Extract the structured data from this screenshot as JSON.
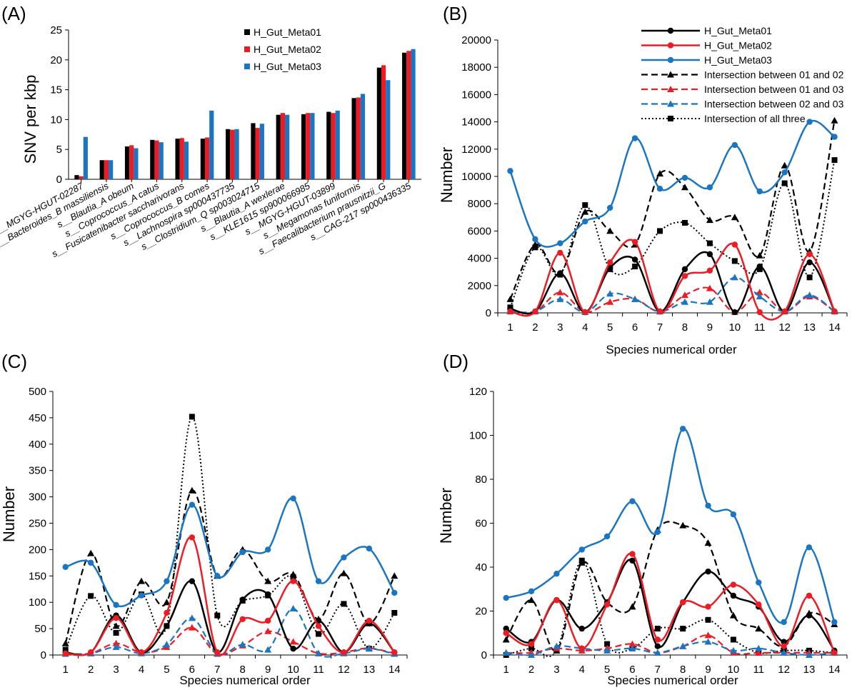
{
  "colors": {
    "meta01": "#000000",
    "meta02": "#ed1c24",
    "meta03": "#1a75c2"
  },
  "chart_data": [
    {
      "panel": "(A)",
      "type": "bar",
      "ylabel": "SNV per kbp",
      "ylim": [
        0,
        25
      ],
      "yticks": [
        0,
        5,
        10,
        15,
        20,
        25
      ],
      "categories": [
        "s__MGYG-HGUT-02287",
        "s__Bacteroides_B massiliensis",
        "s__Blautia_A obeum",
        "s__Coprococcus_A catus",
        "s__Fusicatenibacter saccharivorans",
        "s__Coprococcus_B comes",
        "s__Lachnospira sp000437735",
        "s__Clostridium_Q sp003024715",
        "s__Blautia_A wexlerae",
        "s__KLE1615 sp900066985",
        "s__MGYG-HGUT-03899",
        "s__Megamonas funiformis",
        "s__Faecalibacterium prausnitzii_G",
        "s__CAG-217 sp000436335"
      ],
      "series": [
        {
          "name": "H_Gut_Meta01",
          "values": [
            0.7,
            3.2,
            5.5,
            6.6,
            6.8,
            6.8,
            8.4,
            9.4,
            10.8,
            10.9,
            11.3,
            13.6,
            18.7,
            21.2
          ]
        },
        {
          "name": "H_Gut_Meta02",
          "values": [
            0.5,
            3.2,
            5.7,
            6.5,
            6.9,
            7.0,
            8.3,
            8.6,
            11.1,
            11.1,
            11.1,
            13.7,
            19.1,
            21.5
          ]
        },
        {
          "name": "H_Gut_Meta03",
          "values": [
            7.1,
            3.2,
            5.2,
            6.2,
            6.3,
            11.5,
            8.4,
            9.3,
            10.8,
            11.1,
            11.5,
            14.3,
            16.6,
            21.8
          ]
        }
      ],
      "legend_position": "top-center"
    },
    {
      "panel": "(B)",
      "type": "line",
      "xlabel": "Species numerical order",
      "ylabel": "Number",
      "ylim": [
        0,
        20000
      ],
      "yticks": [
        0,
        2000,
        4000,
        6000,
        8000,
        10000,
        12000,
        14000,
        16000,
        18000,
        20000
      ],
      "x": [
        1,
        2,
        3,
        4,
        5,
        6,
        7,
        8,
        9,
        10,
        11,
        12,
        13,
        14
      ],
      "legend_position": "top-right",
      "series": [
        {
          "name": "H_Gut_Meta01",
          "values": [
            300,
            100,
            2900,
            50,
            3300,
            3900,
            100,
            3200,
            4300,
            50,
            3400,
            100,
            3700,
            100
          ]
        },
        {
          "name": "H_Gut_Meta02",
          "values": [
            100,
            100,
            4400,
            50,
            3700,
            5200,
            100,
            2700,
            3100,
            5000,
            50,
            100,
            4300,
            100
          ]
        },
        {
          "name": "H_Gut_Meta03",
          "values": [
            10400,
            5400,
            5100,
            6700,
            7700,
            12800,
            9100,
            9900,
            9200,
            12300,
            8900,
            10300,
            14000,
            12900
          ]
        },
        {
          "name": "Intersection between 01 and 02",
          "values": [
            1000,
            5000,
            2900,
            7400,
            6000,
            5000,
            10200,
            9200,
            6800,
            7000,
            4200,
            10800,
            4500,
            14100
          ]
        },
        {
          "name": "Intersection between 01 and 03",
          "values": [
            100,
            100,
            1500,
            50,
            800,
            1000,
            100,
            1300,
            1800,
            50,
            1500,
            100,
            1200,
            100
          ]
        },
        {
          "name": "Intersection between 02 and 03",
          "values": [
            100,
            100,
            1000,
            50,
            1400,
            1000,
            100,
            800,
            800,
            2600,
            1200,
            100,
            1300,
            100
          ]
        },
        {
          "name": "Intersection of all three",
          "values": [
            400,
            4800,
            2800,
            7900,
            3200,
            3400,
            6000,
            6600,
            5100,
            3800,
            3200,
            9500,
            2600,
            11200
          ]
        }
      ]
    },
    {
      "panel": "(C)",
      "type": "line",
      "xlabel": "Species numerical order",
      "ylabel": "Number",
      "ylim": [
        0,
        500
      ],
      "yticks": [
        0,
        50,
        100,
        150,
        200,
        250,
        300,
        350,
        400,
        450,
        500
      ],
      "x": [
        1,
        2,
        3,
        4,
        5,
        6,
        7,
        8,
        9,
        10,
        11,
        12,
        13,
        14
      ],
      "series": [
        {
          "name": "H_Gut_Meta01",
          "values": [
            5,
            5,
            75,
            5,
            55,
            140,
            5,
            105,
            115,
            12,
            65,
            5,
            60,
            5
          ]
        },
        {
          "name": "H_Gut_Meta02",
          "values": [
            3,
            5,
            70,
            5,
            80,
            223,
            5,
            68,
            65,
            140,
            55,
            5,
            65,
            5
          ]
        },
        {
          "name": "H_Gut_Meta03",
          "values": [
            167,
            175,
            95,
            113,
            140,
            285,
            150,
            195,
            200,
            297,
            140,
            185,
            202,
            118
          ]
        },
        {
          "name": "Intersection between 01 and 02",
          "values": [
            22,
            193,
            55,
            140,
            100,
            312,
            150,
            200,
            140,
            153,
            68,
            155,
            60,
            150
          ]
        },
        {
          "name": "Intersection between 01 and 03",
          "values": [
            2,
            3,
            22,
            5,
            15,
            52,
            2,
            18,
            45,
            25,
            3,
            5,
            13,
            3
          ]
        },
        {
          "name": "Intersection between 02 and 03",
          "values": [
            2,
            3,
            15,
            3,
            20,
            70,
            3,
            20,
            10,
            88,
            3,
            3,
            12,
            2
          ]
        },
        {
          "name": "Intersection of all three",
          "values": [
            10,
            112,
            42,
            115,
            55,
            452,
            75,
            103,
            113,
            148,
            40,
            97,
            12,
            80
          ]
        }
      ]
    },
    {
      "panel": "(D)",
      "type": "line",
      "xlabel": "Species numerical order",
      "ylabel": "Number",
      "ylim": [
        0,
        120
      ],
      "yticks": [
        0,
        20,
        40,
        60,
        80,
        100,
        120
      ],
      "x": [
        1,
        2,
        3,
        4,
        5,
        6,
        7,
        8,
        9,
        10,
        11,
        12,
        13,
        14
      ],
      "series": [
        {
          "name": "H_Gut_Meta01",
          "values": [
            12,
            6,
            25,
            12,
            24,
            43,
            4,
            24,
            38,
            27,
            22,
            6,
            18,
            2
          ]
        },
        {
          "name": "H_Gut_Meta02",
          "values": [
            10,
            5,
            25,
            3,
            23,
            46,
            7,
            24,
            22,
            32,
            23,
            4,
            27,
            1
          ]
        },
        {
          "name": "H_Gut_Meta03",
          "values": [
            26,
            29,
            37,
            48,
            54,
            70,
            56,
            103,
            68,
            64,
            33,
            15,
            49,
            15
          ]
        },
        {
          "name": "Intersection between 01 and 02",
          "values": [
            7,
            25,
            2,
            42,
            24,
            22,
            57,
            59,
            51,
            18,
            12,
            4,
            19,
            14
          ]
        },
        {
          "name": "Intersection between 01 and 03",
          "values": [
            1,
            1,
            3,
            2,
            3,
            5,
            1,
            4,
            9,
            1,
            1,
            1,
            1,
            1
          ]
        },
        {
          "name": "Intersection between 02 and 03",
          "values": [
            1,
            0,
            4,
            3,
            2,
            3,
            1,
            4,
            6,
            2,
            3,
            1,
            0,
            1
          ]
        },
        {
          "name": "Intersection of all three",
          "values": [
            0,
            3,
            2,
            43,
            5,
            3,
            12,
            12,
            16,
            7,
            1,
            2,
            2,
            1
          ]
        }
      ]
    }
  ]
}
